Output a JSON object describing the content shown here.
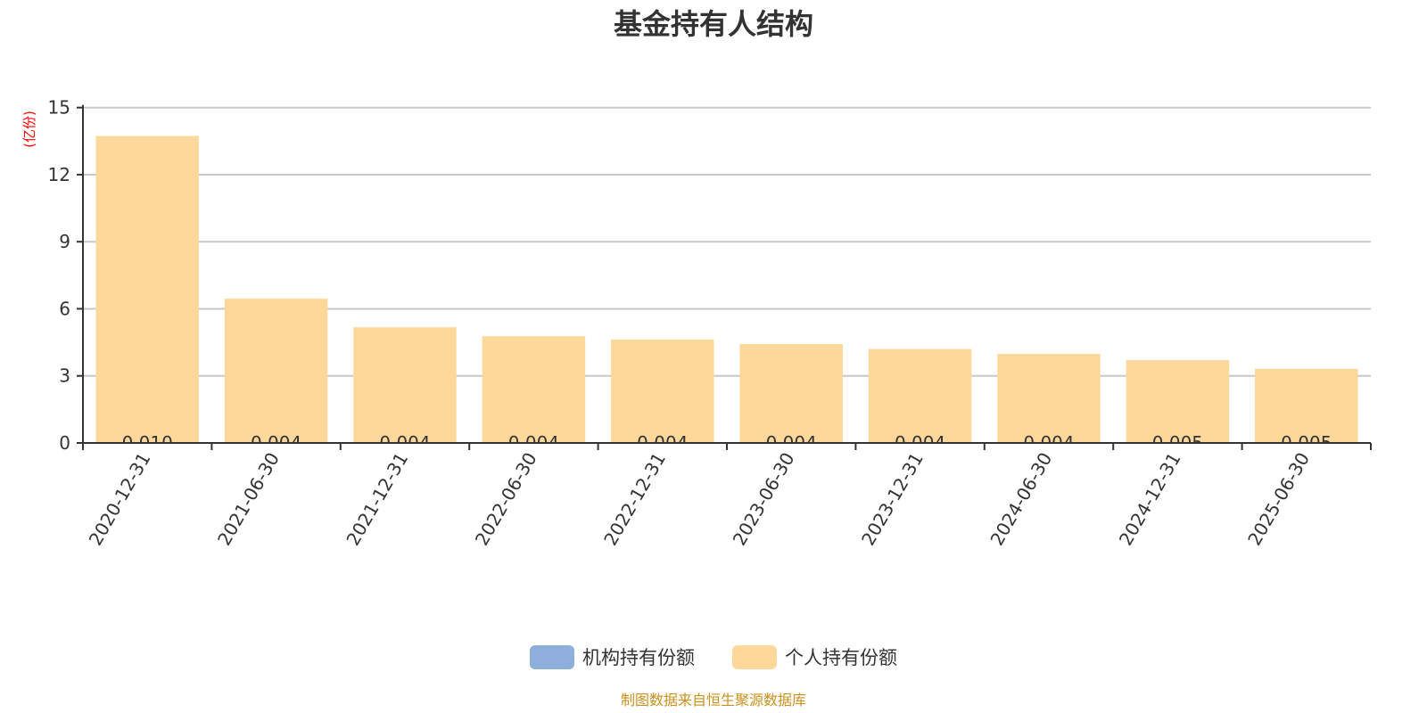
{
  "chart_data": {
    "type": "bar",
    "title": "基金持有人结构",
    "ylabel": "(亿份)",
    "ylim": [
      0,
      15
    ],
    "yticks": [
      0,
      3,
      6,
      9,
      12,
      15
    ],
    "grid": true,
    "legend_position": "bottom",
    "categories": [
      "2020-12-31",
      "2021-06-30",
      "2021-12-31",
      "2022-06-30",
      "2022-12-31",
      "2023-06-30",
      "2023-12-31",
      "2024-06-30",
      "2024-12-31",
      "2025-06-30"
    ],
    "series": [
      {
        "name": "机构持有份额",
        "color": "#8eaedb",
        "values": [
          0.01,
          0.004,
          0.004,
          0.004,
          0.004,
          0.004,
          0.004,
          0.004,
          0.005,
          0.005
        ],
        "labels": [
          "0.010",
          "0.004",
          "0.004",
          "0.004",
          "0.004",
          "0.004",
          "0.004",
          "0.004",
          "0.005",
          "0.005"
        ]
      },
      {
        "name": "个人持有份额",
        "color": "#fed89b",
        "values": [
          13.72,
          6.45,
          5.17,
          4.77,
          4.62,
          4.42,
          4.2,
          3.98,
          3.7,
          3.31
        ]
      }
    ]
  },
  "footer": "制图数据来自恒生聚源数据库"
}
